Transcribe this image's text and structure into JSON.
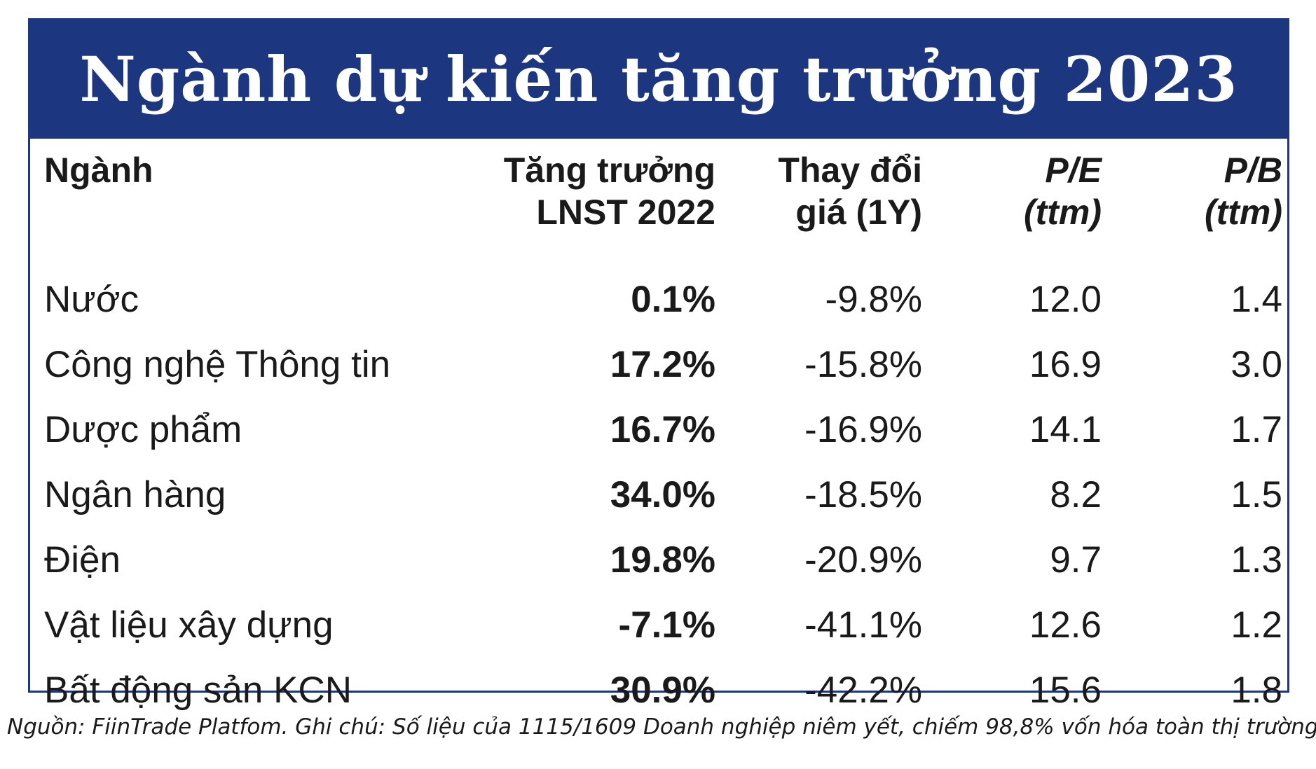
{
  "chart_data": {
    "type": "table",
    "title": "Ngành dự kiến tăng trưởng 2023",
    "columns": [
      {
        "line1": "Ngành",
        "line2": ""
      },
      {
        "line1": "Tăng trưởng",
        "line2": "LNST 2022"
      },
      {
        "line1": "Thay đổi",
        "line2": "giá (1Y)"
      },
      {
        "line1": "P/E",
        "line2": "(ttm)"
      },
      {
        "line1": "P/B",
        "line2": "(ttm)"
      }
    ],
    "rows": [
      {
        "sector": "Nước",
        "growth": "0.1%",
        "growth_sign": "pos",
        "price_change": "-9.8%",
        "pe": "12.0",
        "pb": "1.4"
      },
      {
        "sector": "Công nghệ Thông tin",
        "growth": "17.2%",
        "growth_sign": "pos",
        "price_change": "-15.8%",
        "pe": "16.9",
        "pb": "3.0"
      },
      {
        "sector": "Dược phẩm",
        "growth": "16.7%",
        "growth_sign": "pos",
        "price_change": "-16.9%",
        "pe": "14.1",
        "pb": "1.7"
      },
      {
        "sector": "Ngân hàng",
        "growth": "34.0%",
        "growth_sign": "pos",
        "price_change": "-18.5%",
        "pe": "8.2",
        "pb": "1.5"
      },
      {
        "sector": "Điện",
        "growth": "19.8%",
        "growth_sign": "pos",
        "price_change": "-20.9%",
        "pe": "9.7",
        "pb": "1.3"
      },
      {
        "sector": "Vật liệu xây dựng",
        "growth": "-7.1%",
        "growth_sign": "neg",
        "price_change": "-41.1%",
        "pe": "12.6",
        "pb": "1.2"
      },
      {
        "sector": "Bất động sản KCN",
        "growth": "30.9%",
        "growth_sign": "pos",
        "price_change": "-42.2%",
        "pe": "15.6",
        "pb": "1.8"
      }
    ],
    "colors": {
      "banner": "#1d3680",
      "positive": "#4caf50",
      "negative": "#a51c1c"
    }
  },
  "source_note": "Nguồn: FiinTrade Platfom. Ghi chú: Số liệu của 1115/1609 Doanh nghiệp niêm yết, chiếm 98,8% vốn hóa toàn thị trường"
}
